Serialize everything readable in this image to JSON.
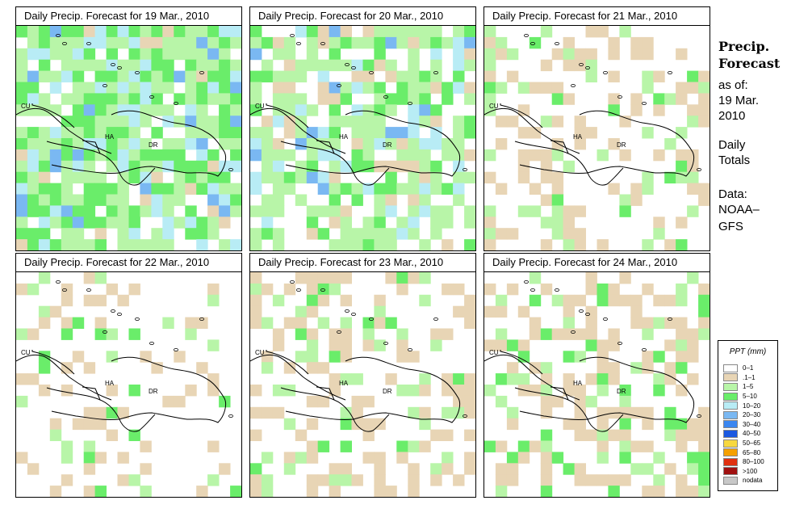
{
  "panels": [
    {
      "title": "Daily Precip. Forecast for  19 Mar., 2010"
    },
    {
      "title": "Daily Precip. Forecast for  20 Mar., 2010"
    },
    {
      "title": "Daily Precip. Forecast for  21 Mar., 2010"
    },
    {
      "title": "Daily Precip. Forecast for  22 Mar., 2010"
    },
    {
      "title": "Daily Precip. Forecast for  23 Mar., 2010"
    },
    {
      "title": "Daily Precip. Forecast for  24 Mar., 2010"
    }
  ],
  "map_labels": {
    "cuba": "CU",
    "haiti": "HA",
    "dominican_republic": "DR"
  },
  "sidebar": {
    "heading_line1": "Precip.",
    "heading_line2": "Forecast",
    "asof": "as of:",
    "date_line1": "19 Mar.",
    "date_line2": "2010",
    "daily_line1": "Daily",
    "daily_line2": "Totals",
    "data_line1": "Data:",
    "data_line2": "NOAA–",
    "data_line3": "GFS"
  },
  "legend": {
    "title": "PPT (mm)",
    "items": [
      {
        "label": "0–1",
        "color": "#ffffff"
      },
      {
        "label": ".1–1",
        "color": "#e8d5b5"
      },
      {
        "label": "1–5",
        "color": "#b8f5a8"
      },
      {
        "label": "5–10",
        "color": "#6aed6a"
      },
      {
        "label": "10–20",
        "color": "#b8ecf5"
      },
      {
        "label": "20–30",
        "color": "#7ab8f2"
      },
      {
        "label": "30–40",
        "color": "#3a86f0"
      },
      {
        "label": "40–50",
        "color": "#1a58e0"
      },
      {
        "label": "50–65",
        "color": "#f7d840"
      },
      {
        "label": "65–80",
        "color": "#f5a000"
      },
      {
        "label": "80–100",
        "color": "#e03010"
      },
      {
        "label": ">100",
        "color": "#a01010"
      },
      {
        "label": "nodata",
        "color": "#c8c8c8"
      }
    ]
  }
}
